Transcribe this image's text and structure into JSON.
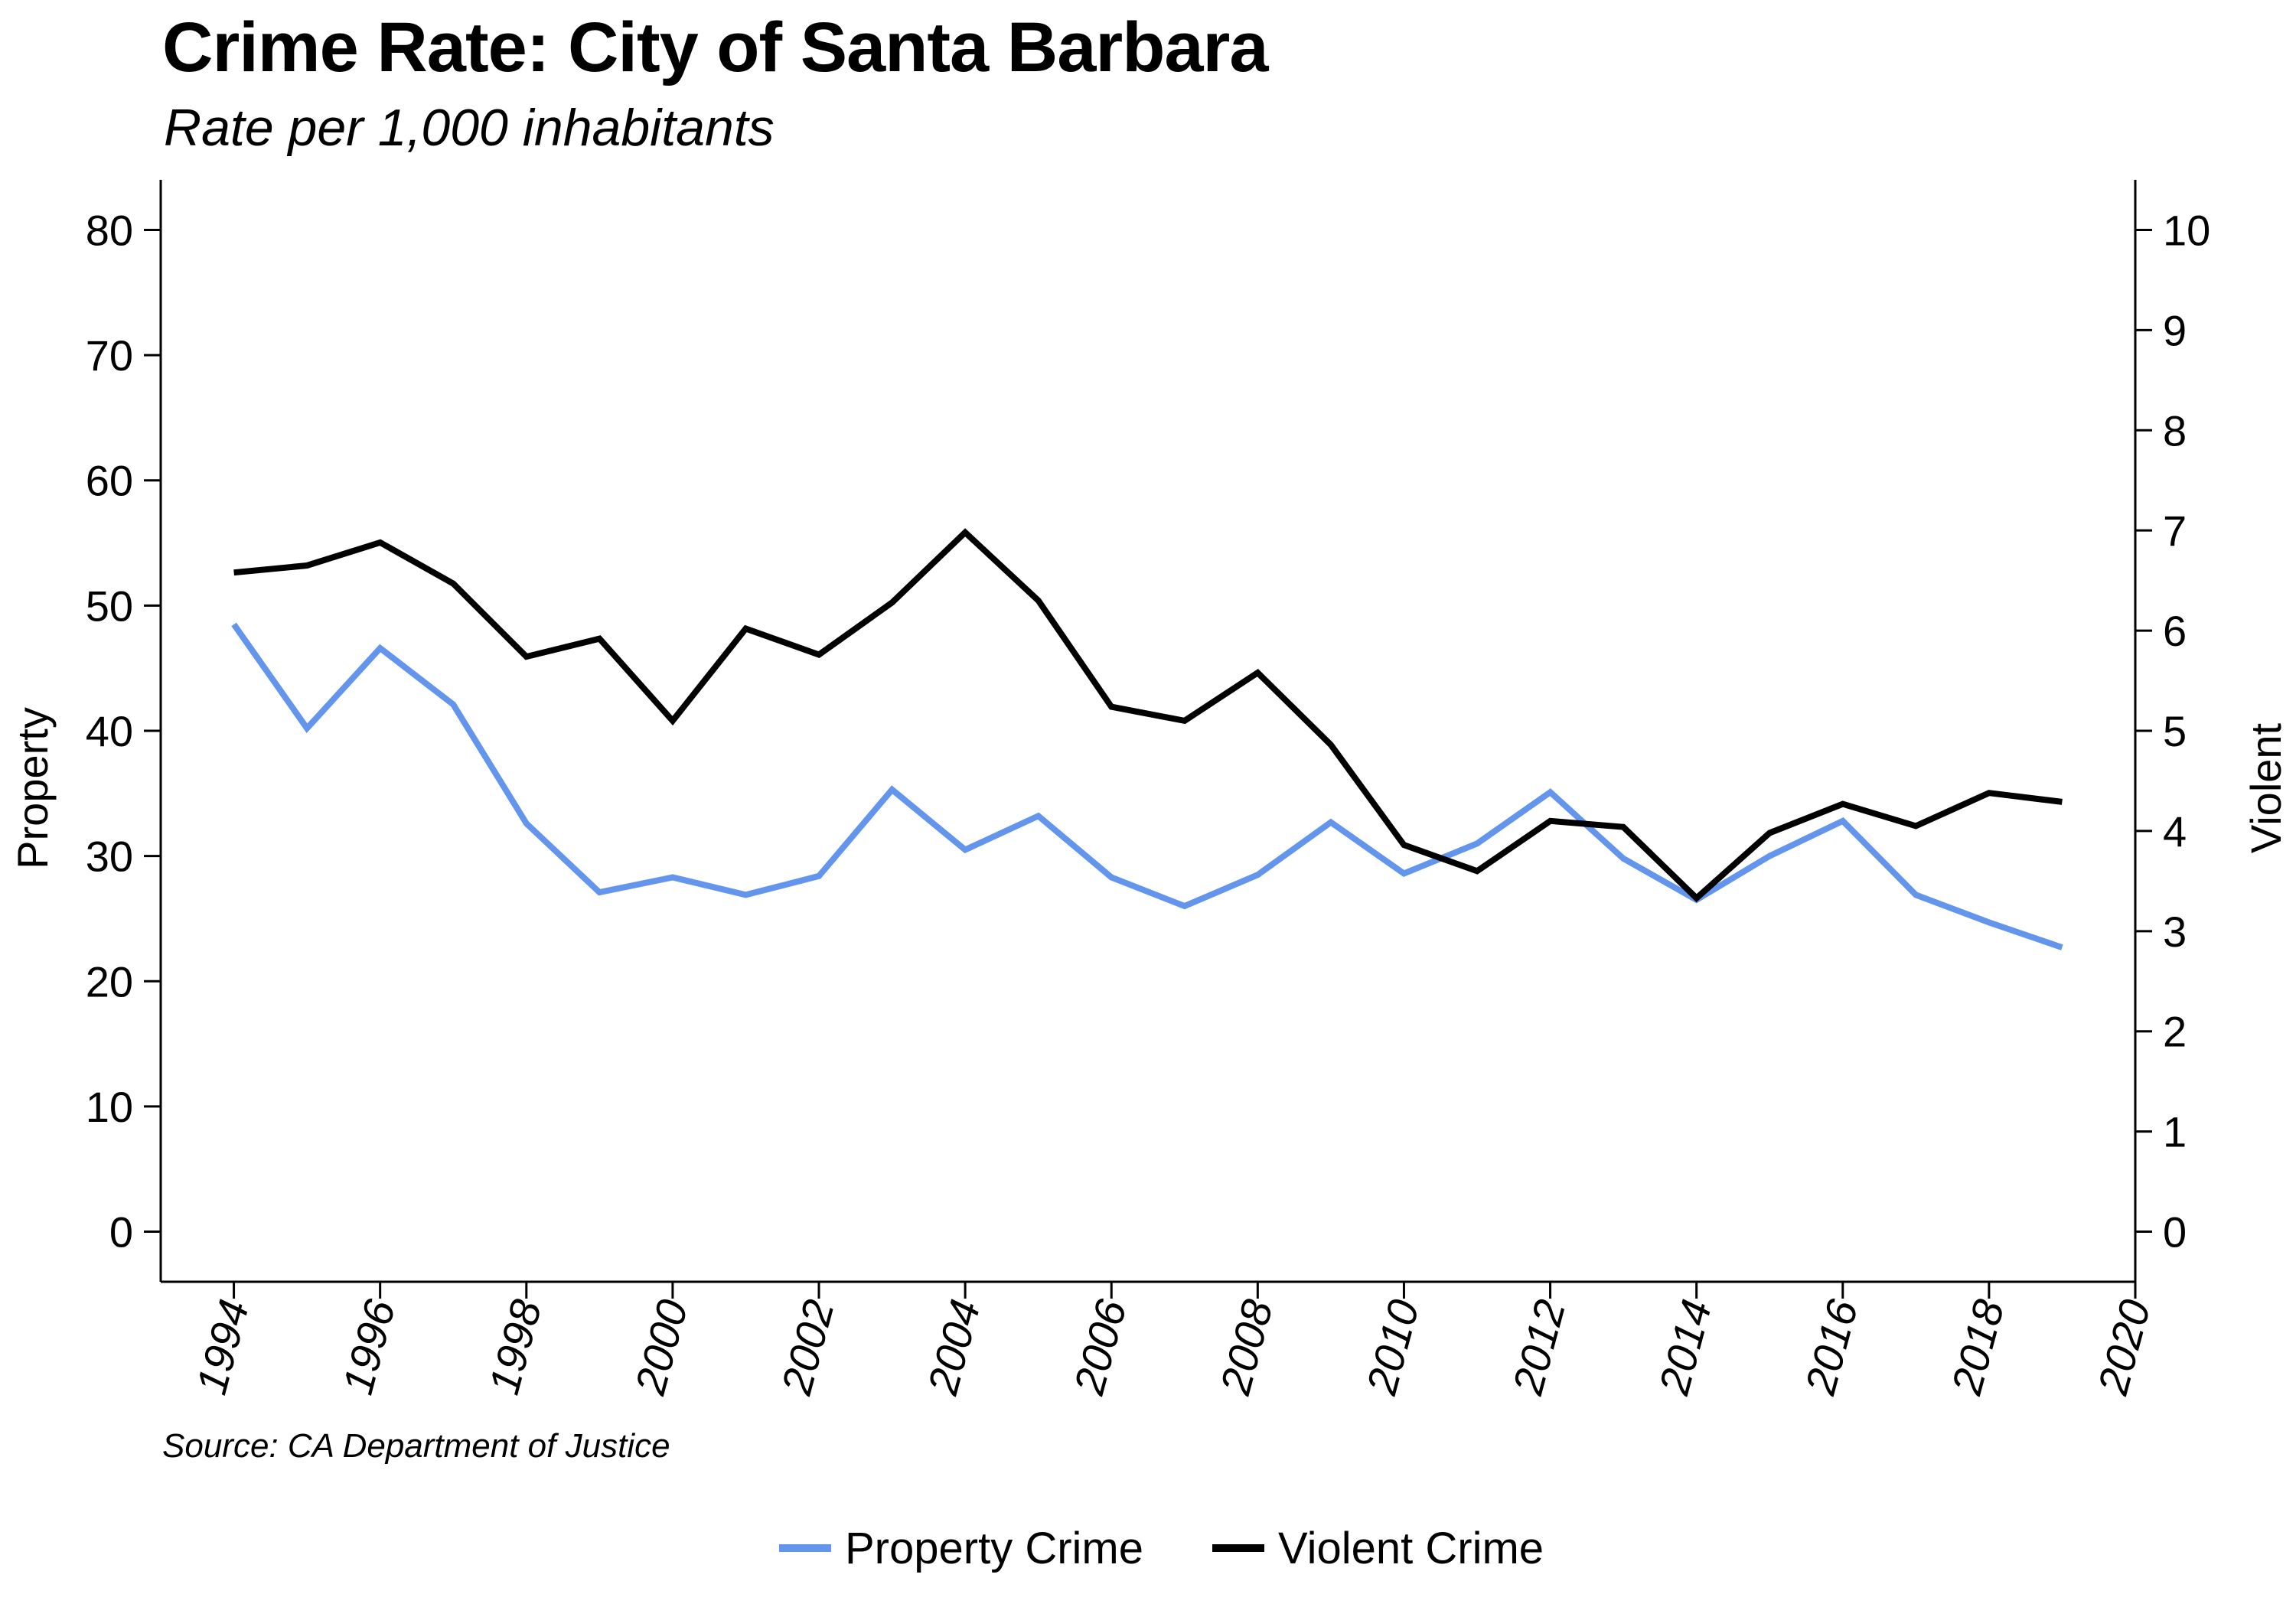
{
  "title": "Crime Rate: City of Santa Barbara",
  "subtitle": "Rate per 1,000 inhabitants",
  "source": "Source: CA Department of Justice",
  "chart_data": {
    "type": "line",
    "title": "Crime Rate: City of Santa Barbara",
    "subtitle": "Rate per 1,000 inhabitants",
    "x": [
      1994,
      1995,
      1996,
      1997,
      1998,
      1999,
      2000,
      2001,
      2002,
      2003,
      2004,
      2005,
      2006,
      2007,
      2008,
      2009,
      2010,
      2011,
      2012,
      2013,
      2014,
      2015,
      2016,
      2017,
      2018,
      2019
    ],
    "x_ticks": [
      "1994",
      "1996",
      "1998",
      "2000",
      "2002",
      "2004",
      "2006",
      "2008",
      "2010",
      "2012",
      "2014",
      "2016",
      "2018",
      "2020"
    ],
    "xlim": [
      1993,
      2020
    ],
    "ylabel_left": "Property",
    "ylabel_right": "Violent",
    "ylim_left": [
      -4,
      84
    ],
    "ylim_right": [
      -0.5,
      10.5
    ],
    "y_ticks_left": [
      "0",
      "10",
      "20",
      "30",
      "40",
      "50",
      "60",
      "70",
      "80"
    ],
    "y_ticks_right": [
      "0",
      "1",
      "2",
      "3",
      "4",
      "5",
      "6",
      "7",
      "8",
      "9",
      "10"
    ],
    "series": [
      {
        "name": "Property Crime",
        "axis": "left",
        "color": "#6495ED",
        "values": [
          48.5,
          40.2,
          46.6,
          42.1,
          32.6,
          27.1,
          28.3,
          26.9,
          28.4,
          35.3,
          30.5,
          33.2,
          28.3,
          26.0,
          28.5,
          32.7,
          28.6,
          31.0,
          35.1,
          29.8,
          26.5,
          30.0,
          32.8,
          26.9,
          24.7,
          22.7
        ]
      },
      {
        "name": "Violent Crime",
        "axis": "right",
        "color": "#000000",
        "values": [
          6.58,
          6.65,
          6.88,
          6.47,
          5.74,
          5.92,
          5.1,
          6.02,
          5.76,
          6.28,
          6.98,
          6.3,
          5.24,
          5.1,
          5.58,
          4.86,
          3.86,
          3.6,
          4.1,
          4.04,
          3.33,
          3.98,
          4.27,
          4.05,
          4.38,
          4.29
        ]
      }
    ],
    "grid": false,
    "legend": "bottom"
  }
}
